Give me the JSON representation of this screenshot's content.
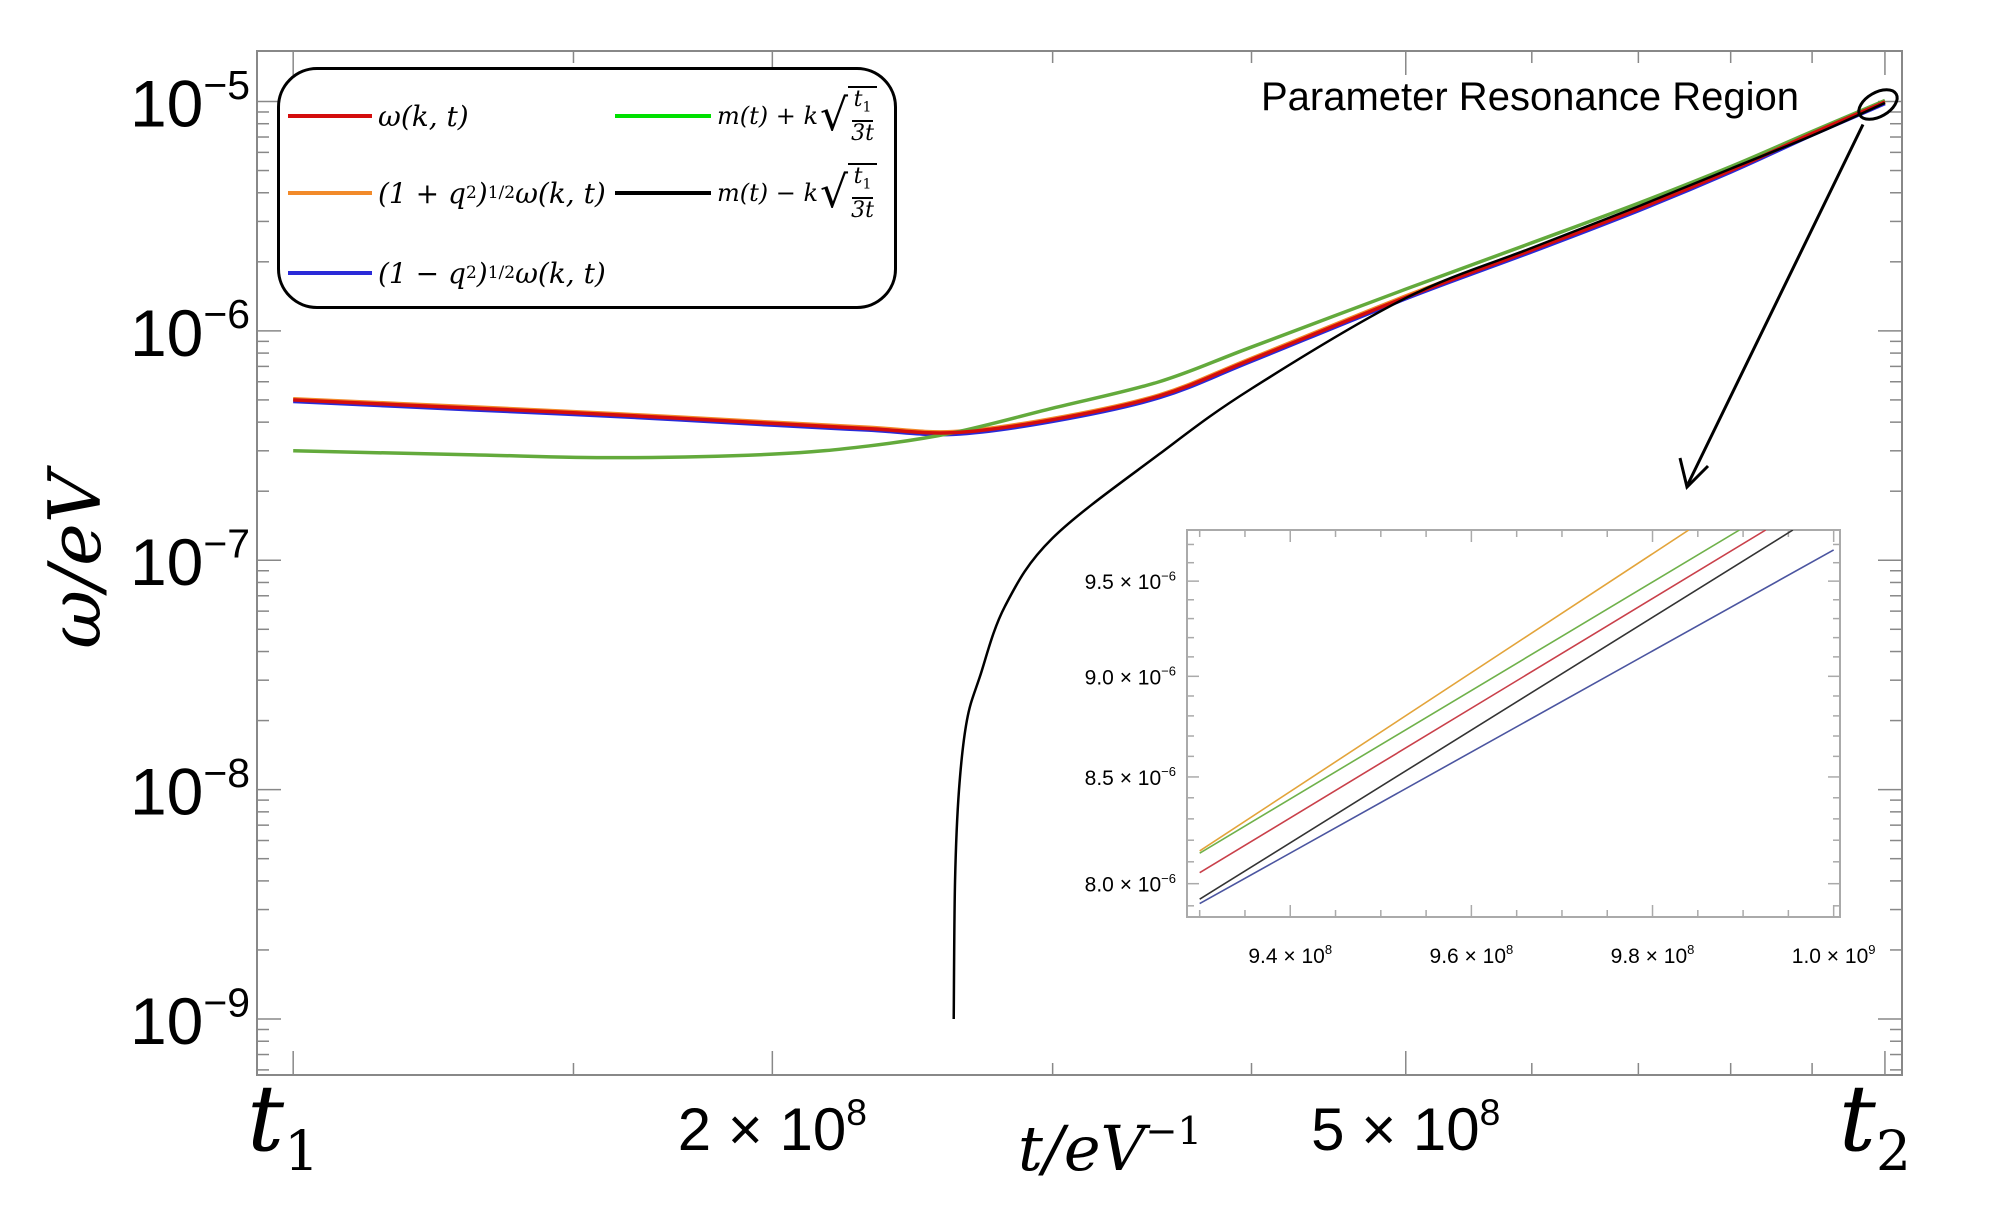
{
  "chart_data": [
    {
      "type": "line",
      "xscale": "log",
      "yscale": "log",
      "xlim": [
        94900000.0,
        1025000000.0
      ],
      "ylim": [
        5.7e-10,
        1.66e-05
      ],
      "grid": false,
      "legend_placement": "top-left",
      "xlabel": {
        "text": "t/eV",
        "sup": "−1"
      },
      "ylabel": "ω/eV",
      "xticks": [
        {
          "value": 100000000.0,
          "label": "t",
          "sub": "1"
        },
        {
          "value": 200000000.0,
          "label": "2 × 10",
          "sup": "8"
        },
        {
          "value": 500000000.0,
          "label": "5 × 10",
          "sup": "8"
        },
        {
          "value": 1000000000.0,
          "label": "t",
          "sub": "2"
        }
      ],
      "xminor": [
        150000000.0,
        300000000.0,
        400000000.0,
        600000000.0,
        700000000.0,
        800000000.0,
        900000000.0
      ],
      "yticks": [
        {
          "value": 1e-05,
          "base": "10",
          "sup": "−5"
        },
        {
          "value": 1e-06,
          "base": "10",
          "sup": "−6"
        },
        {
          "value": 1e-07,
          "base": "10",
          "sup": "−7"
        },
        {
          "value": 1e-08,
          "base": "10",
          "sup": "−8"
        },
        {
          "value": 1e-09,
          "base": "10",
          "sup": "−9"
        }
      ],
      "series": [
        {
          "key": "orange",
          "color": "#f28a2a",
          "x": [
            100000000.0,
            130000000.0,
            160000000.0,
            200000000.0,
            230000000.0,
            260000000.0,
            300000000.0,
            350000000.0,
            400000000.0,
            500000000.0,
            600000000.0,
            700000000.0,
            800000000.0,
            900000000.0,
            1000000000.0
          ],
          "y": [
            5.06e-07,
            4.66e-07,
            4.35e-07,
            4e-07,
            3.8e-07,
            3.64e-07,
            4.15e-07,
            5.26e-07,
            7.6e-07,
            1.42e-06,
            2.28e-06,
            3.44e-06,
            5.06e-06,
            7.34e-06,
            1.007e-05
          ]
        },
        {
          "key": "blue",
          "color": "#2a2ad8",
          "x": [
            100000000.0,
            130000000.0,
            160000000.0,
            200000000.0,
            230000000.0,
            260000000.0,
            300000000.0,
            350000000.0,
            400000000.0,
            500000000.0,
            600000000.0,
            700000000.0,
            800000000.0,
            900000000.0,
            1000000000.0
          ],
          "y": [
            4.92e-07,
            4.52e-07,
            4.23e-07,
            3.88e-07,
            3.69e-07,
            3.54e-07,
            4.03e-07,
            5.11e-07,
            7.37e-07,
            1.38e-06,
            2.21e-06,
            3.34e-06,
            4.92e-06,
            7.13e-06,
            9.78e-06
          ]
        },
        {
          "key": "green",
          "color": "#63aa3c",
          "x": [
            100000000.0,
            130000000.0,
            160000000.0,
            200000000.0,
            230000000.0,
            260000000.0,
            300000000.0,
            350000000.0,
            400000000.0,
            500000000.0,
            600000000.0,
            700000000.0,
            800000000.0,
            900000000.0,
            1000000000.0
          ],
          "y": [
            3e-07,
            2.88e-07,
            2.8e-07,
            2.9e-07,
            3.15e-07,
            3.6e-07,
            4.6e-07,
            6e-07,
            8.5e-07,
            1.52e-06,
            2.42e-06,
            3.6e-06,
            5.2e-06,
            7.4e-06,
            1.01e-05
          ]
        },
        {
          "key": "red",
          "color": "#d40d0d",
          "x": [
            100000000.0,
            130000000.0,
            160000000.0,
            200000000.0,
            230000000.0,
            260000000.0,
            300000000.0,
            350000000.0,
            400000000.0,
            500000000.0,
            600000000.0,
            700000000.0,
            800000000.0,
            900000000.0,
            1000000000.0
          ],
          "y": [
            5e-07,
            4.6e-07,
            4.3e-07,
            3.95e-07,
            3.75e-07,
            3.6e-07,
            4.1e-07,
            5.2e-07,
            7.5e-07,
            1.4e-06,
            2.25e-06,
            3.4e-06,
            5e-06,
            7.25e-06,
            9.95e-06
          ]
        },
        {
          "key": "black",
          "color": "#000000",
          "x": [
            260000000.0,
            260500000.0,
            262000000.0,
            265000000.0,
            270000000.0,
            280000000.0,
            300000000.0,
            350000000.0,
            400000000.0,
            500000000.0,
            600000000.0,
            700000000.0,
            800000000.0,
            900000000.0,
            1000000000.0
          ],
          "y": [
            1e-09,
            4e-09,
            1e-08,
            2e-08,
            3.1e-08,
            6.3e-08,
            1.25e-07,
            2.9e-07,
            5.6e-07,
            1.39e-06,
            2.3e-06,
            3.49e-06,
            5.09e-06,
            7.1e-06,
            9.85e-06
          ]
        }
      ],
      "annotation": {
        "text": "Parameter Resonance Region",
        "target": {
          "x": 990000000.0,
          "y": 9.7e-06
        }
      }
    },
    {
      "type": "line",
      "role": "inset",
      "xscale": "linear",
      "yscale": "log",
      "xlim": [
        928600000.0,
        1000700000.0
      ],
      "ylim": [
        7.85e-06,
        9.78e-06
      ],
      "xticks": [
        {
          "value": 940000000.0,
          "label": "9.4 × 10",
          "sup": "8"
        },
        {
          "value": 960000000.0,
          "label": "9.6 × 10",
          "sup": "8"
        },
        {
          "value": 980000000.0,
          "label": "9.8 × 10",
          "sup": "8"
        },
        {
          "value": 1000000000.0,
          "label": "1.0 × 10",
          "sup": "9"
        }
      ],
      "yticks": [
        {
          "value": 8e-06,
          "label": "8.0 × 10",
          "sup": "−6"
        },
        {
          "value": 8.5e-06,
          "label": "8.5 × 10",
          "sup": "−6"
        },
        {
          "value": 9e-06,
          "label": "9.0 × 10",
          "sup": "−6"
        },
        {
          "value": 9.5e-06,
          "label": "9.5 × 10",
          "sup": "−6"
        }
      ],
      "series": [
        {
          "key": "orange",
          "color": "#e3a43a",
          "x": [
            930000000.0,
            984000000.0
          ],
          "y": [
            8.15e-06,
            9.78e-06
          ]
        },
        {
          "key": "green",
          "color": "#6fb14a",
          "x": [
            930000000.0,
            989600000.0
          ],
          "y": [
            8.14e-06,
            9.78e-06
          ]
        },
        {
          "key": "red",
          "color": "#c9404a",
          "x": [
            930000000.0,
            992500000.0
          ],
          "y": [
            8.05e-06,
            9.78e-06
          ]
        },
        {
          "key": "black",
          "color": "#333333",
          "x": [
            930000000.0,
            995500000.0
          ],
          "y": [
            7.93e-06,
            9.78e-06
          ]
        },
        {
          "key": "blue",
          "color": "#4b55a0",
          "x": [
            930000000.0,
            1000000000.0
          ],
          "y": [
            7.91e-06,
            9.67e-06
          ]
        }
      ]
    }
  ],
  "legend": {
    "red": {
      "color": "#d40d0d",
      "text": "ω(k, t)"
    },
    "orange": {
      "color": "#f28a2a",
      "pre": "(1 + q",
      "sup1": "2",
      "mid": ")",
      "sup2": "1/2",
      "post": "ω(k, t)"
    },
    "blue": {
      "color": "#2a2ad8",
      "pre": "(1 − q",
      "sup1": "2",
      "mid": ")",
      "sup2": "1/2",
      "post": "ω(k, t)"
    },
    "green": {
      "color": "#00e000",
      "pre": "m(t) + k",
      "num": "t",
      "numsub": "1",
      "den": "3t"
    },
    "black": {
      "color": "#000000",
      "pre": "m(t) − k",
      "num": "t",
      "numsub": "1",
      "den": "3t"
    }
  }
}
